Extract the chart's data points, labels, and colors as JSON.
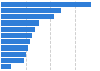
{
  "values": [
    33000,
    22000,
    19500,
    14000,
    12500,
    11500,
    10500,
    9800,
    9200,
    8500,
    3500
  ],
  "bar_color": "#2f7ed8",
  "background_color": "#ffffff",
  "grid_color": "#c8c8c8",
  "xlim": [
    0,
    36000
  ],
  "figsize": [
    1.0,
    0.71
  ],
  "dpi": 100,
  "grid_values": [
    9000,
    18000,
    27000,
    36000
  ]
}
